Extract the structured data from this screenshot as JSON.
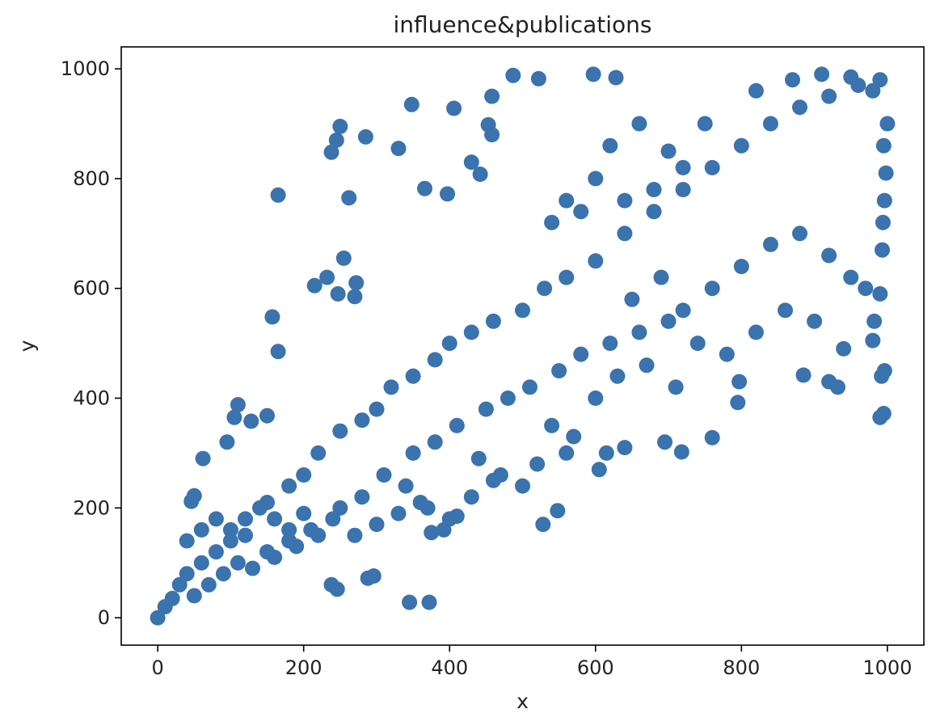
{
  "chart_data": {
    "type": "scatter",
    "title": "influence&publications",
    "xlabel": "x",
    "ylabel": "y",
    "xlim": [
      -50,
      1050
    ],
    "ylim": [
      -50,
      1040
    ],
    "xticks": [
      0,
      200,
      400,
      600,
      800,
      1000
    ],
    "yticks": [
      0,
      200,
      400,
      600,
      800,
      1000
    ],
    "grid": false,
    "legend": "none",
    "color": "#3a73ae",
    "series": [
      {
        "points": [
          [
            250,
            895
          ],
          [
            245,
            870
          ],
          [
            238,
            848
          ],
          [
            285,
            876
          ],
          [
            330,
            855
          ],
          [
            348,
            935
          ],
          [
            406,
            928
          ],
          [
            366,
            782
          ],
          [
            397,
            772
          ],
          [
            165,
            770
          ],
          [
            262,
            765
          ],
          [
            157,
            548
          ],
          [
            165,
            485
          ],
          [
            215,
            605
          ],
          [
            232,
            620
          ],
          [
            255,
            655
          ],
          [
            247,
            590
          ],
          [
            270,
            585
          ],
          [
            272,
            610
          ],
          [
            62,
            290
          ],
          [
            95,
            320
          ],
          [
            110,
            388
          ],
          [
            105,
            365
          ],
          [
            128,
            358
          ],
          [
            150,
            368
          ],
          [
            50,
            222
          ],
          [
            46,
            212
          ],
          [
            345,
            28
          ],
          [
            372,
            28
          ],
          [
            288,
            72
          ],
          [
            296,
            76
          ],
          [
            238,
            60
          ],
          [
            246,
            52
          ],
          [
            528,
            170
          ],
          [
            548,
            195
          ],
          [
            375,
            155
          ],
          [
            392,
            160
          ],
          [
            410,
            185
          ],
          [
            605,
            270
          ],
          [
            615,
            300
          ],
          [
            640,
            310
          ],
          [
            695,
            320
          ],
          [
            718,
            302
          ],
          [
            760,
            328
          ],
          [
            795,
            392
          ],
          [
            797,
            430
          ],
          [
            885,
            442
          ],
          [
            920,
            430
          ],
          [
            932,
            420
          ],
          [
            940,
            490
          ],
          [
            992,
            440
          ],
          [
            996,
            450
          ],
          [
            990,
            365
          ],
          [
            995,
            372
          ],
          [
            993,
            670
          ],
          [
            990,
            590
          ],
          [
            982,
            540
          ],
          [
            980,
            505
          ],
          [
            487,
            988
          ],
          [
            522,
            982
          ],
          [
            597,
            990
          ],
          [
            628,
            984
          ],
          [
            458,
            950
          ],
          [
            453,
            898
          ],
          [
            430,
            830
          ],
          [
            442,
            808
          ],
          [
            458,
            880
          ],
          [
            0,
            0
          ],
          [
            10,
            20
          ],
          [
            20,
            35
          ],
          [
            30,
            60
          ],
          [
            40,
            80
          ],
          [
            60,
            100
          ],
          [
            80,
            120
          ],
          [
            100,
            160
          ],
          [
            120,
            180
          ],
          [
            150,
            210
          ],
          [
            180,
            240
          ],
          [
            200,
            260
          ],
          [
            220,
            300
          ],
          [
            250,
            340
          ],
          [
            280,
            360
          ],
          [
            300,
            380
          ],
          [
            320,
            420
          ],
          [
            350,
            440
          ],
          [
            380,
            470
          ],
          [
            400,
            500
          ],
          [
            430,
            520
          ],
          [
            460,
            540
          ],
          [
            500,
            560
          ],
          [
            530,
            600
          ],
          [
            560,
            620
          ],
          [
            600,
            650
          ],
          [
            640,
            700
          ],
          [
            680,
            740
          ],
          [
            720,
            780
          ],
          [
            760,
            820
          ],
          [
            800,
            860
          ],
          [
            840,
            900
          ],
          [
            880,
            930
          ],
          [
            920,
            950
          ],
          [
            960,
            970
          ],
          [
            990,
            980
          ],
          [
            700,
            850
          ],
          [
            750,
            900
          ],
          [
            820,
            960
          ],
          [
            870,
            980
          ],
          [
            910,
            990
          ],
          [
            950,
            985
          ],
          [
            980,
            960
          ],
          [
            1000,
            900
          ],
          [
            995,
            860
          ],
          [
            998,
            810
          ],
          [
            996,
            760
          ],
          [
            994,
            720
          ],
          [
            650,
            580
          ],
          [
            690,
            620
          ],
          [
            720,
            560
          ],
          [
            760,
            600
          ],
          [
            800,
            640
          ],
          [
            840,
            680
          ],
          [
            880,
            700
          ],
          [
            920,
            660
          ],
          [
            950,
            620
          ],
          [
            970,
            600
          ],
          [
            550,
            450
          ],
          [
            580,
            480
          ],
          [
            620,
            500
          ],
          [
            660,
            520
          ],
          [
            700,
            540
          ],
          [
            740,
            500
          ],
          [
            780,
            480
          ],
          [
            820,
            520
          ],
          [
            860,
            560
          ],
          [
            900,
            540
          ],
          [
            450,
            380
          ],
          [
            480,
            400
          ],
          [
            510,
            420
          ],
          [
            540,
            350
          ],
          [
            570,
            330
          ],
          [
            600,
            400
          ],
          [
            630,
            440
          ],
          [
            670,
            460
          ],
          [
            710,
            420
          ],
          [
            350,
            300
          ],
          [
            380,
            320
          ],
          [
            410,
            350
          ],
          [
            440,
            290
          ],
          [
            470,
            260
          ],
          [
            500,
            240
          ],
          [
            520,
            280
          ],
          [
            560,
            300
          ],
          [
            250,
            200
          ],
          [
            280,
            220
          ],
          [
            310,
            260
          ],
          [
            340,
            240
          ],
          [
            370,
            200
          ],
          [
            400,
            180
          ],
          [
            430,
            220
          ],
          [
            460,
            250
          ],
          [
            150,
            120
          ],
          [
            180,
            140
          ],
          [
            210,
            160
          ],
          [
            240,
            180
          ],
          [
            270,
            150
          ],
          [
            300,
            170
          ],
          [
            330,
            190
          ],
          [
            360,
            210
          ],
          [
            50,
            40
          ],
          [
            70,
            60
          ],
          [
            90,
            80
          ],
          [
            110,
            100
          ],
          [
            130,
            90
          ],
          [
            160,
            110
          ],
          [
            190,
            130
          ],
          [
            220,
            150
          ],
          [
            40,
            140
          ],
          [
            60,
            160
          ],
          [
            80,
            180
          ],
          [
            100,
            140
          ],
          [
            120,
            150
          ],
          [
            140,
            200
          ],
          [
            160,
            180
          ],
          [
            180,
            160
          ],
          [
            200,
            190
          ],
          [
            560,
            760
          ],
          [
            600,
            800
          ],
          [
            640,
            760
          ],
          [
            680,
            780
          ],
          [
            720,
            820
          ],
          [
            540,
            720
          ],
          [
            580,
            740
          ],
          [
            620,
            860
          ],
          [
            660,
            900
          ]
        ]
      }
    ]
  }
}
